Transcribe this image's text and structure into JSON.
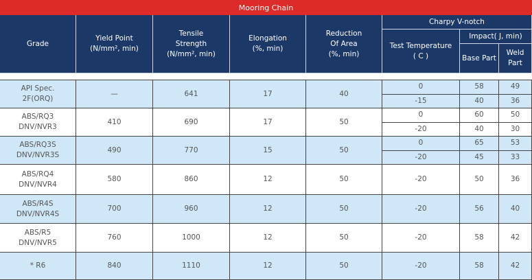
{
  "title": "Mooring Chain",
  "headers": {
    "grade": "Grade",
    "yield": "Yield Point\n(N/mm², min)",
    "tensile": "Tensile\nStrength\n(N/mm², min)",
    "elongation": "Elongation\n(%, min)",
    "reduction": "Reduction\nOf Area\n(%, min)",
    "charpy": "Charpy V-notch",
    "test_temp": "Test Temperature\n( C )",
    "impact": "Impact( J, min)",
    "base": "Base Part",
    "weld": "Weld Part"
  },
  "rows": [
    {
      "grade": "API Spec.\n2F(ORQ)",
      "yield": "—",
      "tensile": "641",
      "elongation": "17",
      "reduction": "40",
      "tests": [
        {
          "temp": "0",
          "base": "58",
          "weld": "49"
        },
        {
          "temp": "-15",
          "base": "40",
          "weld": "36"
        }
      ]
    },
    {
      "grade": "ABS/RQ3\nDNV/NVR3",
      "yield": "410",
      "tensile": "690",
      "elongation": "17",
      "reduction": "50",
      "tests": [
        {
          "temp": "0",
          "base": "60",
          "weld": "50"
        },
        {
          "temp": "-20",
          "base": "40",
          "weld": "30"
        }
      ]
    },
    {
      "grade": "ABS/RQ3S\nDNV/NVR3S",
      "yield": "490",
      "tensile": "770",
      "elongation": "15",
      "reduction": "50",
      "tests": [
        {
          "temp": "0",
          "base": "65",
          "weld": "53"
        },
        {
          "temp": "-20",
          "base": "45",
          "weld": "33"
        }
      ]
    },
    {
      "grade": "ABS/RQ4\nDNV/NVR4",
      "yield": "580",
      "tensile": "860",
      "elongation": "12",
      "reduction": "50",
      "tests": [
        {
          "temp": "-20",
          "base": "50",
          "weld": "36"
        }
      ]
    },
    {
      "grade": "ABS/R4S\nDNV/NVR4S",
      "yield": "700",
      "tensile": "960",
      "elongation": "12",
      "reduction": "50",
      "tests": [
        {
          "temp": "-20",
          "base": "56",
          "weld": "40"
        }
      ]
    },
    {
      "grade": "ABS/R5\nDNV/NVR5",
      "yield": "760",
      "tensile": "1000",
      "elongation": "12",
      "reduction": "50",
      "tests": [
        {
          "temp": "-20",
          "base": "58",
          "weld": "42"
        }
      ]
    },
    {
      "grade": "* R6",
      "yield": "840",
      "tensile": "1110",
      "elongation": "12",
      "reduction": "50",
      "tests": [
        {
          "temp": "-20",
          "base": "58",
          "weld": "42"
        }
      ]
    }
  ],
  "colors": {
    "title_bg": "#dc2b28",
    "header_bg": "#1c3866",
    "stripe": "#cfe7f6"
  }
}
